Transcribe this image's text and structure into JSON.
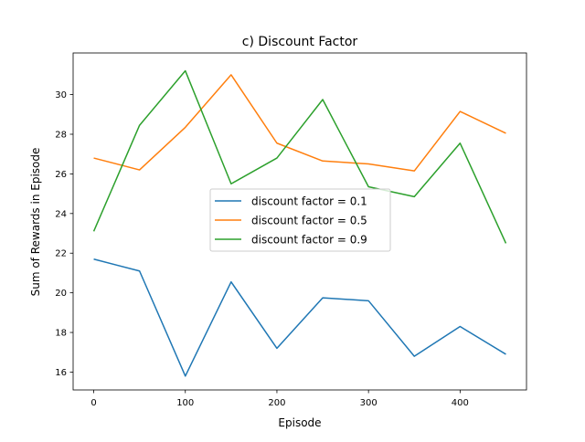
{
  "chart_data": {
    "type": "line",
    "title": "c) Discount Factor",
    "xlabel": "Episode",
    "ylabel": "Sum of Rewards in Episode",
    "x": [
      0,
      50,
      100,
      150,
      200,
      250,
      300,
      350,
      400,
      450
    ],
    "xlim": [
      -22.5,
      472.5
    ],
    "ylim": [
      15.1,
      32.1
    ],
    "xticks": [
      0,
      100,
      200,
      300,
      400
    ],
    "yticks": [
      16,
      18,
      20,
      22,
      24,
      26,
      28,
      30
    ],
    "grid": false,
    "legend": {
      "placement": "center"
    },
    "series": [
      {
        "name": "discount factor = 0.1",
        "color": "#1f77b4",
        "values": [
          21.7,
          21.1,
          15.8,
          20.55,
          17.2,
          19.75,
          19.6,
          16.8,
          18.3,
          16.9
        ]
      },
      {
        "name": "discount factor = 0.5",
        "color": "#ff7f0e",
        "values": [
          26.8,
          26.2,
          28.35,
          31.0,
          27.55,
          26.65,
          26.5,
          26.15,
          29.15,
          28.05
        ]
      },
      {
        "name": "discount factor = 0.9",
        "color": "#2ca02c",
        "values": [
          23.1,
          28.45,
          31.2,
          25.5,
          26.8,
          29.75,
          25.35,
          24.85,
          27.55,
          22.5
        ]
      }
    ]
  }
}
